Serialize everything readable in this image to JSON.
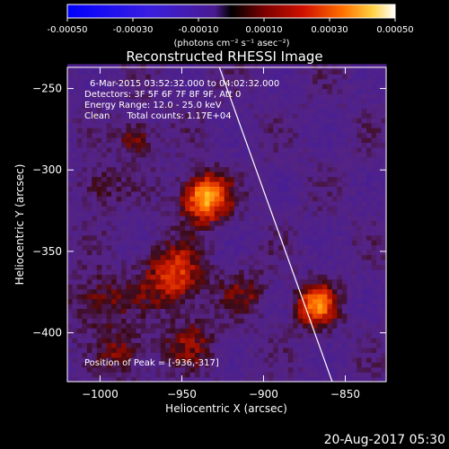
{
  "colorbar": {
    "tick_labels": [
      "-0.00050",
      "-0.00030",
      "-0.00010",
      "0.00010",
      "0.00030",
      "0.00050"
    ],
    "range": [
      -0.0005,
      0.0005
    ],
    "units_label": "(photons cm⁻² s⁻¹ asec⁻²)"
  },
  "chart_data": {
    "type": "heatmap",
    "title": "Reconstructed RHESSI Image",
    "xlabel": "Heliocentric X (arcsec)",
    "ylabel": "Heliocentric Y (arcsec)",
    "xlim": [
      -1020,
      -825
    ],
    "ylim": [
      -430,
      -237
    ],
    "x_ticks": [
      -1000,
      -950,
      -900,
      -850
    ],
    "y_ticks": [
      -250,
      -300,
      -350,
      -400
    ],
    "x_tick_labels": [
      "−1000",
      "−950",
      "−900",
      "−850"
    ],
    "y_tick_labels": [
      "−250",
      "−300",
      "−350",
      "−400"
    ],
    "colormap": "heat",
    "sources": [
      {
        "x": -936,
        "y": -317,
        "peak": 0.0005,
        "sigma": 10
      },
      {
        "x": -955,
        "y": -365,
        "peak": 0.00032,
        "sigma": 13
      },
      {
        "x": -868,
        "y": -383,
        "peak": 0.0004,
        "sigma": 9
      },
      {
        "x": -978,
        "y": -280,
        "peak": 0.00025,
        "sigma": 7
      },
      {
        "x": -1000,
        "y": -310,
        "peak": 0.00016,
        "sigma": 9
      },
      {
        "x": -1000,
        "y": -380,
        "peak": 0.0002,
        "sigma": 12
      },
      {
        "x": -945,
        "y": -405,
        "peak": 0.00016,
        "sigma": 12
      },
      {
        "x": -985,
        "y": -412,
        "peak": 0.00018,
        "sigma": 10
      },
      {
        "x": -910,
        "y": -375,
        "peak": 0.00014,
        "sigma": 10
      }
    ],
    "limb_line": [
      [
        -927,
        -237
      ],
      [
        -858,
        -430
      ]
    ],
    "annotations": {
      "time_range": "6-Mar-2015 03:52:32.000 to 04:02:32.000",
      "detectors": "Detectors: 3F 5F 6F 7F 8F 9F, Att 0",
      "energy_range": "Energy Range: 12.0 - 25.0 keV",
      "clean_counts": "Clean      Total counts: 1.17E+04",
      "peak_position": "Position of Peak = [-936,-317]"
    }
  },
  "footer": {
    "timestamp": "20-Aug-2017 05:30"
  }
}
